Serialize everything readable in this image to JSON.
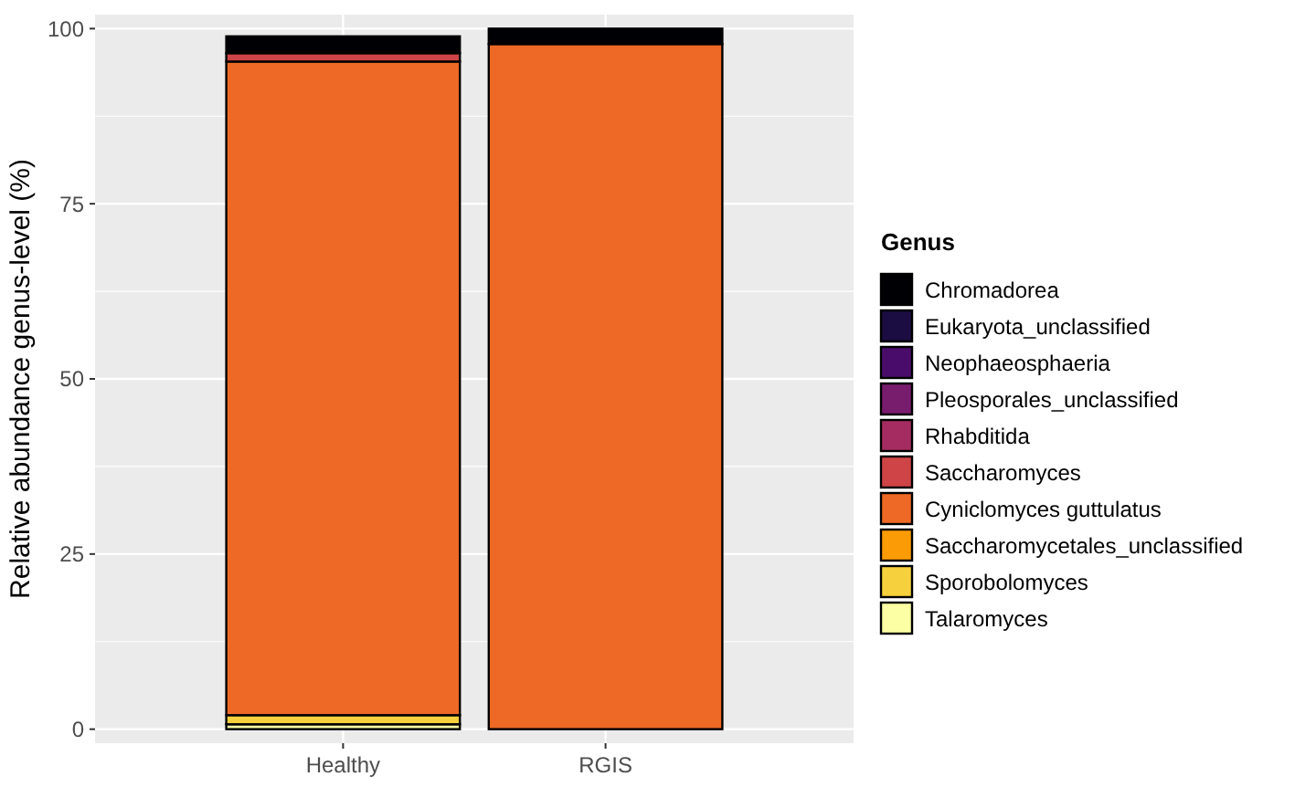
{
  "chart_data": {
    "type": "bar",
    "stacked": true,
    "ylabel": "Relative abundance genus-level (%)",
    "legend_title": "Genus",
    "legend": "right",
    "grid": true,
    "categories": [
      "Healthy",
      "RGIS"
    ],
    "ylim": [
      -2,
      102
    ],
    "yticks": [
      0,
      25,
      50,
      75,
      100
    ],
    "series": [
      {
        "name": "Talaromyces",
        "color": "#fcffa4",
        "values": [
          0.7,
          0
        ]
      },
      {
        "name": "Sporobolomyces",
        "color": "#f7d13d",
        "values": [
          1.3,
          0
        ]
      },
      {
        "name": "Saccharomycetales_unclassified",
        "color": "#fb9b06",
        "values": [
          null,
          0
        ]
      },
      {
        "name": "Cyniclomyces guttulatus",
        "color": "#ed6925",
        "values": [
          93.3,
          97.8
        ]
      },
      {
        "name": "Saccharomyces",
        "color": "#cf4446",
        "values": [
          1.2,
          0
        ]
      },
      {
        "name": "Rhabditida",
        "color": "#a52c60",
        "values": [
          0,
          0
        ]
      },
      {
        "name": "Pleosporales_unclassified",
        "color": "#781c6d",
        "values": [
          0,
          0
        ]
      },
      {
        "name": "Neophaeosphaeria",
        "color": "#4a0c6b",
        "values": [
          0,
          0
        ]
      },
      {
        "name": "Eukaryota_unclassified",
        "color": "#1b0c41",
        "values": [
          0,
          0
        ]
      },
      {
        "name": "Chromadorea",
        "color": "#000004",
        "values": [
          2.4,
          2.2
        ]
      }
    ]
  }
}
